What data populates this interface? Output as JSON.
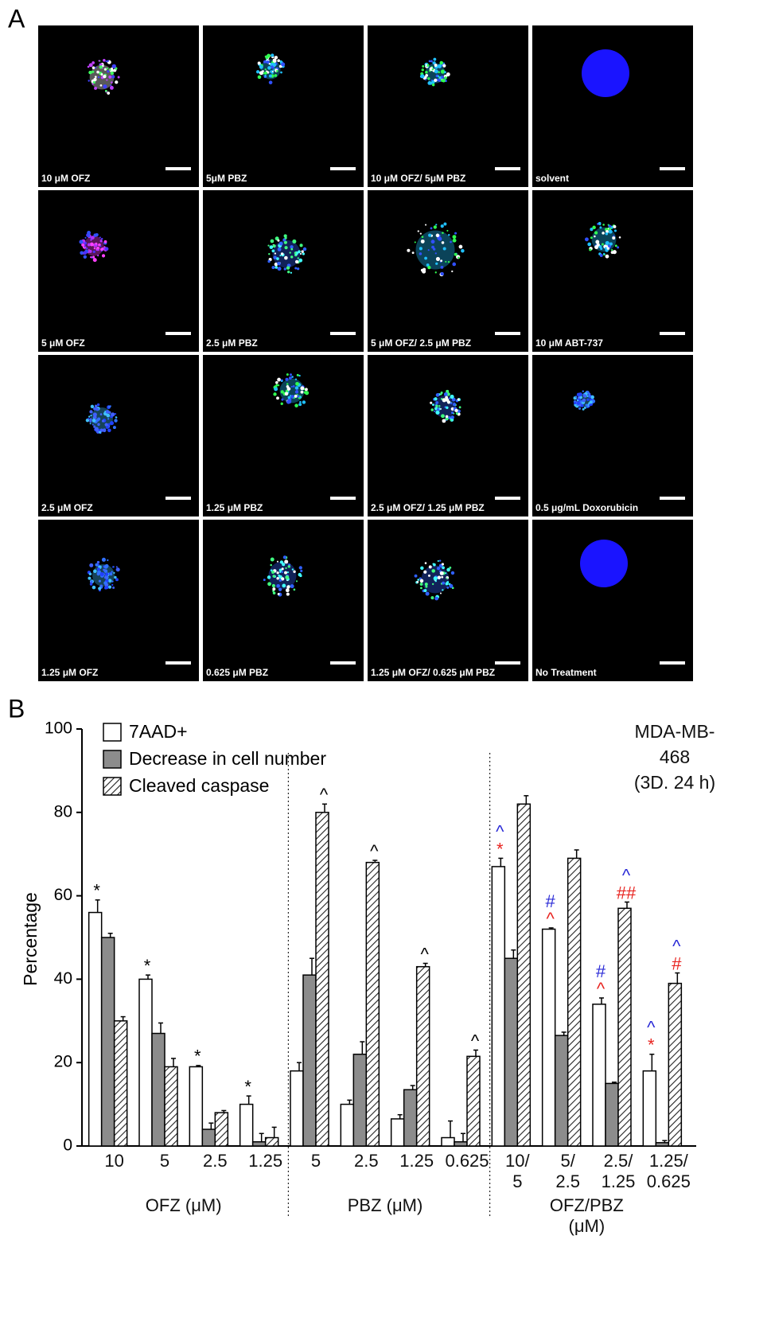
{
  "panel_a": {
    "label": "A",
    "images": [
      "10 μM OFZ",
      "5μM PBZ",
      "10 μM OFZ/ 5μM PBZ",
      "solvent",
      "5 μM OFZ",
      "2.5 μM PBZ",
      "5 μM OFZ/ 2.5 μM PBZ",
      "10 μM ABT-737",
      "2.5 μM OFZ",
      "1.25 μM PBZ",
      "2.5 μM OFZ/ 1.25 μM PBZ",
      "0.5 μg/mL Doxorubicin",
      "1.25 μM OFZ",
      "0.625 μM PBZ",
      "1.25 μM OFZ/ 0.625 μM PBZ",
      "No Treatment"
    ]
  },
  "chart_data": {
    "type": "bar",
    "panel_label": "B",
    "y_label": "Percentage",
    "annotation": "MDA-MB-468\n(3D. 24 h)",
    "categories": [
      "10",
      "5",
      "2.5",
      "1.25",
      "5",
      "2.5",
      "1.25",
      "0.625",
      "10/\n5",
      "5/\n2.5",
      "2.5/\n1.25",
      "1.25/\n0.625"
    ],
    "groups": [
      "OFZ (μM)",
      "PBZ (μM)",
      "OFZ/PBZ\n(μM)"
    ],
    "ylim": [
      0,
      100
    ],
    "yticks": [
      0,
      20,
      40,
      60,
      80,
      100
    ],
    "grid": false,
    "legend": "top-left",
    "series": [
      {
        "name": "7AAD+",
        "color": "#ffffff",
        "hatch": false,
        "values": [
          56,
          40,
          19,
          10,
          18,
          10,
          6.5,
          2,
          67,
          52,
          34,
          18
        ],
        "errors": [
          3,
          1,
          0.3,
          2,
          2,
          1,
          1,
          4,
          2,
          0.3,
          1.5,
          4
        ],
        "markers": [
          [
            {
              "text": "*",
              "color": "#000000"
            }
          ],
          [
            {
              "text": "*",
              "color": "#000000"
            }
          ],
          [
            {
              "text": "*",
              "color": "#000000"
            }
          ],
          [
            {
              "text": "*",
              "color": "#000000"
            }
          ],
          null,
          null,
          null,
          null,
          [
            {
              "text": "*",
              "color": "#e8231f"
            },
            {
              "text": "^",
              "color": "#2929d6"
            }
          ],
          [
            {
              "text": "^",
              "color": "#e8231f"
            },
            {
              "text": "#",
              "color": "#2929d6"
            }
          ],
          [
            {
              "text": "^",
              "color": "#e8231f"
            },
            {
              "text": "#",
              "color": "#2929d6"
            }
          ],
          [
            {
              "text": "*",
              "color": "#e8231f"
            },
            {
              "text": "^",
              "color": "#2929d6"
            }
          ]
        ]
      },
      {
        "name": "Decrease in cell number",
        "color": "#8c8c8c",
        "hatch": false,
        "values": [
          50,
          27,
          4,
          1,
          41,
          22,
          13.5,
          1,
          45,
          26.5,
          15,
          0.8
        ],
        "errors": [
          1,
          2.5,
          1.5,
          2,
          4,
          3,
          1,
          2,
          2,
          0.8,
          0.3,
          0.5
        ]
      },
      {
        "name": "Cleaved caspase",
        "color": "#ffffff",
        "hatch": true,
        "values": [
          30,
          19,
          8,
          2,
          80,
          68,
          43,
          21.5,
          82,
          69,
          57,
          39
        ],
        "errors": [
          1,
          2,
          0.5,
          2.5,
          2,
          0.5,
          0.8,
          1.5,
          2,
          2,
          1.5,
          2.5
        ],
        "markers": [
          null,
          null,
          null,
          null,
          [
            {
              "text": "^",
              "color": "#000000"
            }
          ],
          [
            {
              "text": "^",
              "color": "#000000"
            }
          ],
          [
            {
              "text": "^",
              "color": "#000000"
            }
          ],
          [
            {
              "text": "^",
              "color": "#000000"
            }
          ],
          null,
          null,
          [
            {
              "text": "##",
              "color": "#e8231f"
            },
            {
              "text": "^",
              "color": "#2929d6"
            }
          ],
          [
            {
              "text": "#",
              "color": "#e8231f"
            },
            {
              "text": "^",
              "color": "#2929d6"
            }
          ]
        ]
      }
    ]
  }
}
